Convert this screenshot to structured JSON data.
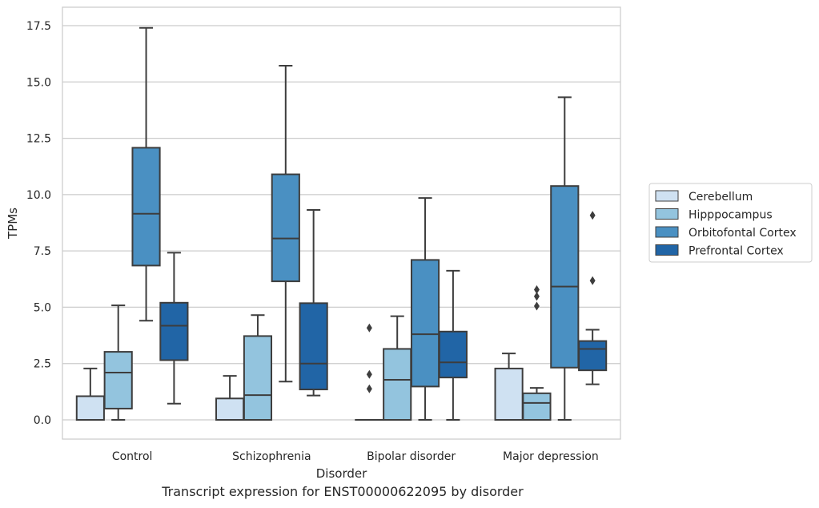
{
  "caption": "Transcript expression for ENST00000622095 by disorder",
  "chart_data": {
    "type": "boxplot",
    "xlabel": "Disorder",
    "ylabel": "TPMs",
    "ylim": [
      -0.85,
      18.3
    ],
    "yticks": [
      0.0,
      2.5,
      5.0,
      7.5,
      10.0,
      12.5,
      15.0,
      17.5
    ],
    "ytick_labels": [
      "0.0",
      "2.5",
      "5.0",
      "7.5",
      "10.0",
      "12.5",
      "15.0",
      "17.5"
    ],
    "grid": "horizontal",
    "legend_position": "outside-right",
    "categories": [
      "Control",
      "Schizophrenia",
      "Bipolar disorder",
      "Major depression"
    ],
    "series": [
      {
        "name": "Cerebellum",
        "color": "#cfe1f2",
        "boxes": [
          {
            "whislo": 0.0,
            "q1": 0.0,
            "med": 0.0,
            "q3": 1.05,
            "whishi": 2.28,
            "fliers": []
          },
          {
            "whislo": 0.0,
            "q1": 0.0,
            "med": 0.0,
            "q3": 0.95,
            "whishi": 1.95,
            "fliers": []
          },
          {
            "whislo": 0.0,
            "q1": 0.0,
            "med": 0.0,
            "q3": 0.0,
            "whishi": 0.0,
            "fliers": [
              1.38,
              2.02,
              4.08
            ]
          },
          {
            "whislo": 0.0,
            "q1": 0.0,
            "med": 0.0,
            "q3": 2.28,
            "whishi": 2.95,
            "fliers": []
          }
        ]
      },
      {
        "name": "Hipppocampus",
        "color": "#93c4de",
        "boxes": [
          {
            "whislo": 0.0,
            "q1": 0.5,
            "med": 2.1,
            "q3": 3.02,
            "whishi": 5.08,
            "fliers": []
          },
          {
            "whislo": 0.0,
            "q1": 0.0,
            "med": 1.1,
            "q3": 3.72,
            "whishi": 4.65,
            "fliers": []
          },
          {
            "whislo": 0.0,
            "q1": 0.0,
            "med": 1.78,
            "q3": 3.15,
            "whishi": 4.6,
            "fliers": []
          },
          {
            "whislo": 0.0,
            "q1": 0.0,
            "med": 0.75,
            "q3": 1.18,
            "whishi": 1.42,
            "fliers": [
              5.05,
              5.48,
              5.78
            ]
          }
        ]
      },
      {
        "name": "Orbitofontal Cortex",
        "color": "#4a90c2",
        "boxes": [
          {
            "whislo": 4.4,
            "q1": 6.85,
            "med": 9.15,
            "q3": 12.08,
            "whishi": 17.4,
            "fliers": []
          },
          {
            "whislo": 1.7,
            "q1": 6.15,
            "med": 8.05,
            "q3": 10.9,
            "whishi": 15.72,
            "fliers": []
          },
          {
            "whislo": 0.0,
            "q1": 1.48,
            "med": 3.8,
            "q3": 7.1,
            "whishi": 9.85,
            "fliers": []
          },
          {
            "whislo": 0.0,
            "q1": 2.32,
            "med": 5.92,
            "q3": 10.38,
            "whishi": 14.32,
            "fliers": []
          }
        ]
      },
      {
        "name": "Prefrontal Cortex",
        "color": "#2165a6",
        "boxes": [
          {
            "whislo": 0.72,
            "q1": 2.65,
            "med": 4.18,
            "q3": 5.2,
            "whishi": 7.42,
            "fliers": []
          },
          {
            "whislo": 1.08,
            "q1": 1.35,
            "med": 2.5,
            "q3": 5.18,
            "whishi": 9.32,
            "fliers": []
          },
          {
            "whislo": 0.0,
            "q1": 1.88,
            "med": 2.55,
            "q3": 3.92,
            "whishi": 6.62,
            "fliers": []
          },
          {
            "whislo": 1.58,
            "q1": 2.2,
            "med": 3.15,
            "q3": 3.5,
            "whishi": 4.0,
            "fliers": [
              6.18,
              9.08
            ]
          }
        ]
      }
    ]
  }
}
